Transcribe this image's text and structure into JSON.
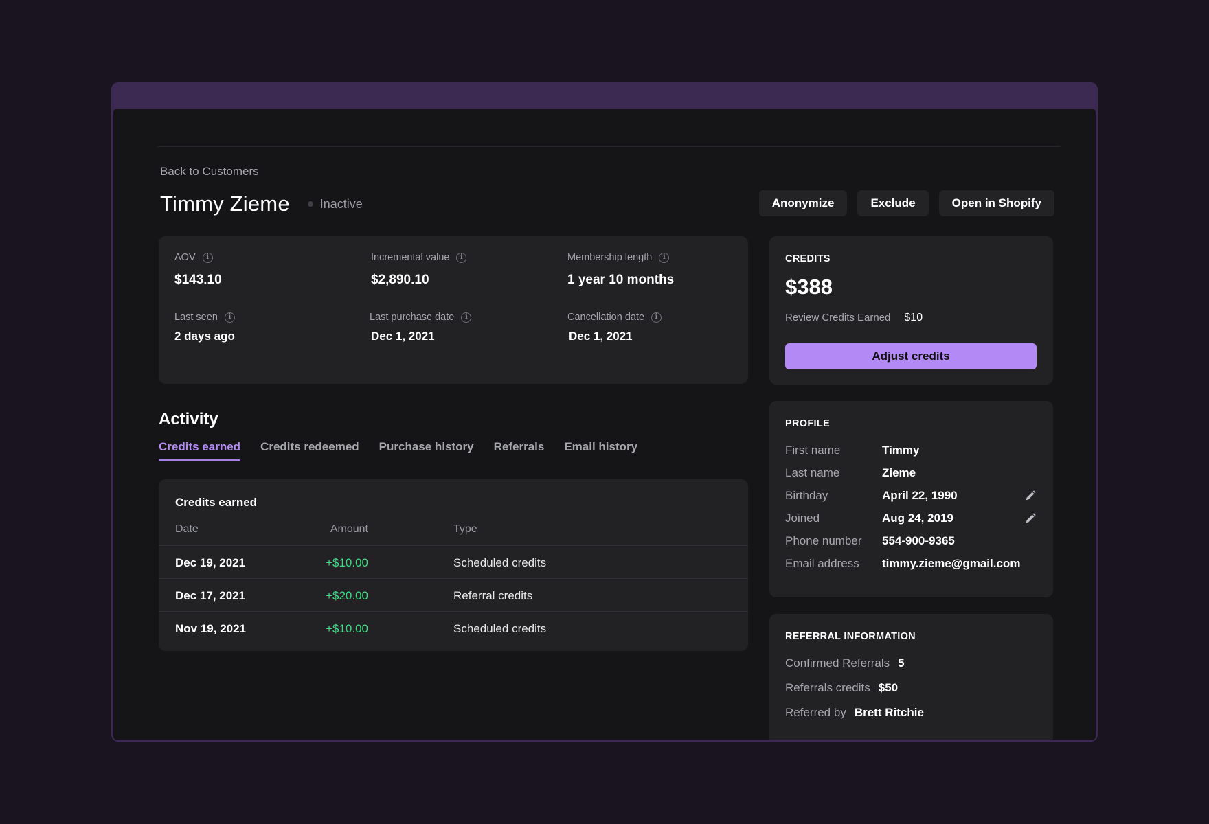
{
  "back_link": "Back to Customers",
  "customer": {
    "name": "Timmy Zieme",
    "status": "Inactive"
  },
  "actions": {
    "anonymize": "Anonymize",
    "exclude": "Exclude",
    "open_shopify": "Open in Shopify"
  },
  "stats": {
    "aov": {
      "label": "AOV",
      "value": "$143.10"
    },
    "incremental_value": {
      "label": "Incremental value",
      "value": "$2,890.10"
    },
    "membership_length": {
      "label": "Membership length",
      "value": "1 year 10 months"
    },
    "last_seen": {
      "label": "Last seen",
      "value": "2 days ago"
    },
    "last_purchase_date": {
      "label": "Last purchase date",
      "value": "Dec 1, 2021"
    },
    "cancellation_date": {
      "label": "Cancellation date",
      "value": "Dec 1, 2021"
    }
  },
  "activity": {
    "title": "Activity",
    "tabs": [
      {
        "label": "Credits earned",
        "active": true
      },
      {
        "label": "Credits redeemed",
        "active": false
      },
      {
        "label": "Purchase history",
        "active": false
      },
      {
        "label": "Referrals",
        "active": false
      },
      {
        "label": "Email history",
        "active": false
      }
    ],
    "table": {
      "title": "Credits earned",
      "columns": [
        "Date",
        "Amount",
        "Type"
      ],
      "rows": [
        {
          "date": "Dec 19, 2021",
          "amount": "+$10.00",
          "type": "Scheduled credits"
        },
        {
          "date": "Dec 17, 2021",
          "amount": "+$20.00",
          "type": "Referral credits"
        },
        {
          "date": "Nov 19, 2021",
          "amount": "+$10.00",
          "type": "Scheduled credits"
        }
      ]
    }
  },
  "credits": {
    "label": "CREDITS",
    "amount": "$388",
    "review_label": "Review Credits Earned",
    "review_value": "$10",
    "adjust_button": "Adjust credits"
  },
  "profile": {
    "label": "PROFILE",
    "fields": [
      {
        "label": "First name",
        "value": "Timmy",
        "editable": false
      },
      {
        "label": "Last name",
        "value": "Zieme",
        "editable": false
      },
      {
        "label": "Birthday",
        "value": "April 22, 1990",
        "editable": true
      },
      {
        "label": "Joined",
        "value": "Aug 24, 2019",
        "editable": true
      },
      {
        "label": "Phone number",
        "value": "554-900-9365",
        "editable": false
      },
      {
        "label": "Email address",
        "value": "timmy.zieme@gmail.com",
        "editable": false
      }
    ]
  },
  "referral": {
    "label": "REFERRAL INFORMATION",
    "confirmed_label": "Confirmed Referrals",
    "confirmed_value": "5",
    "credits_label": "Referrals credits",
    "credits_value": "$50",
    "referred_by_label": "Referred by",
    "referred_by_value": "Brett Ritchie"
  },
  "colors": {
    "accent": "#b38af5",
    "positive": "#3ddc84",
    "background": "#151517",
    "frame": "#3c2a52"
  },
  "icons": {
    "info": "info-circle-icon",
    "edit": "pencil-icon",
    "status": "status-dot-icon"
  }
}
